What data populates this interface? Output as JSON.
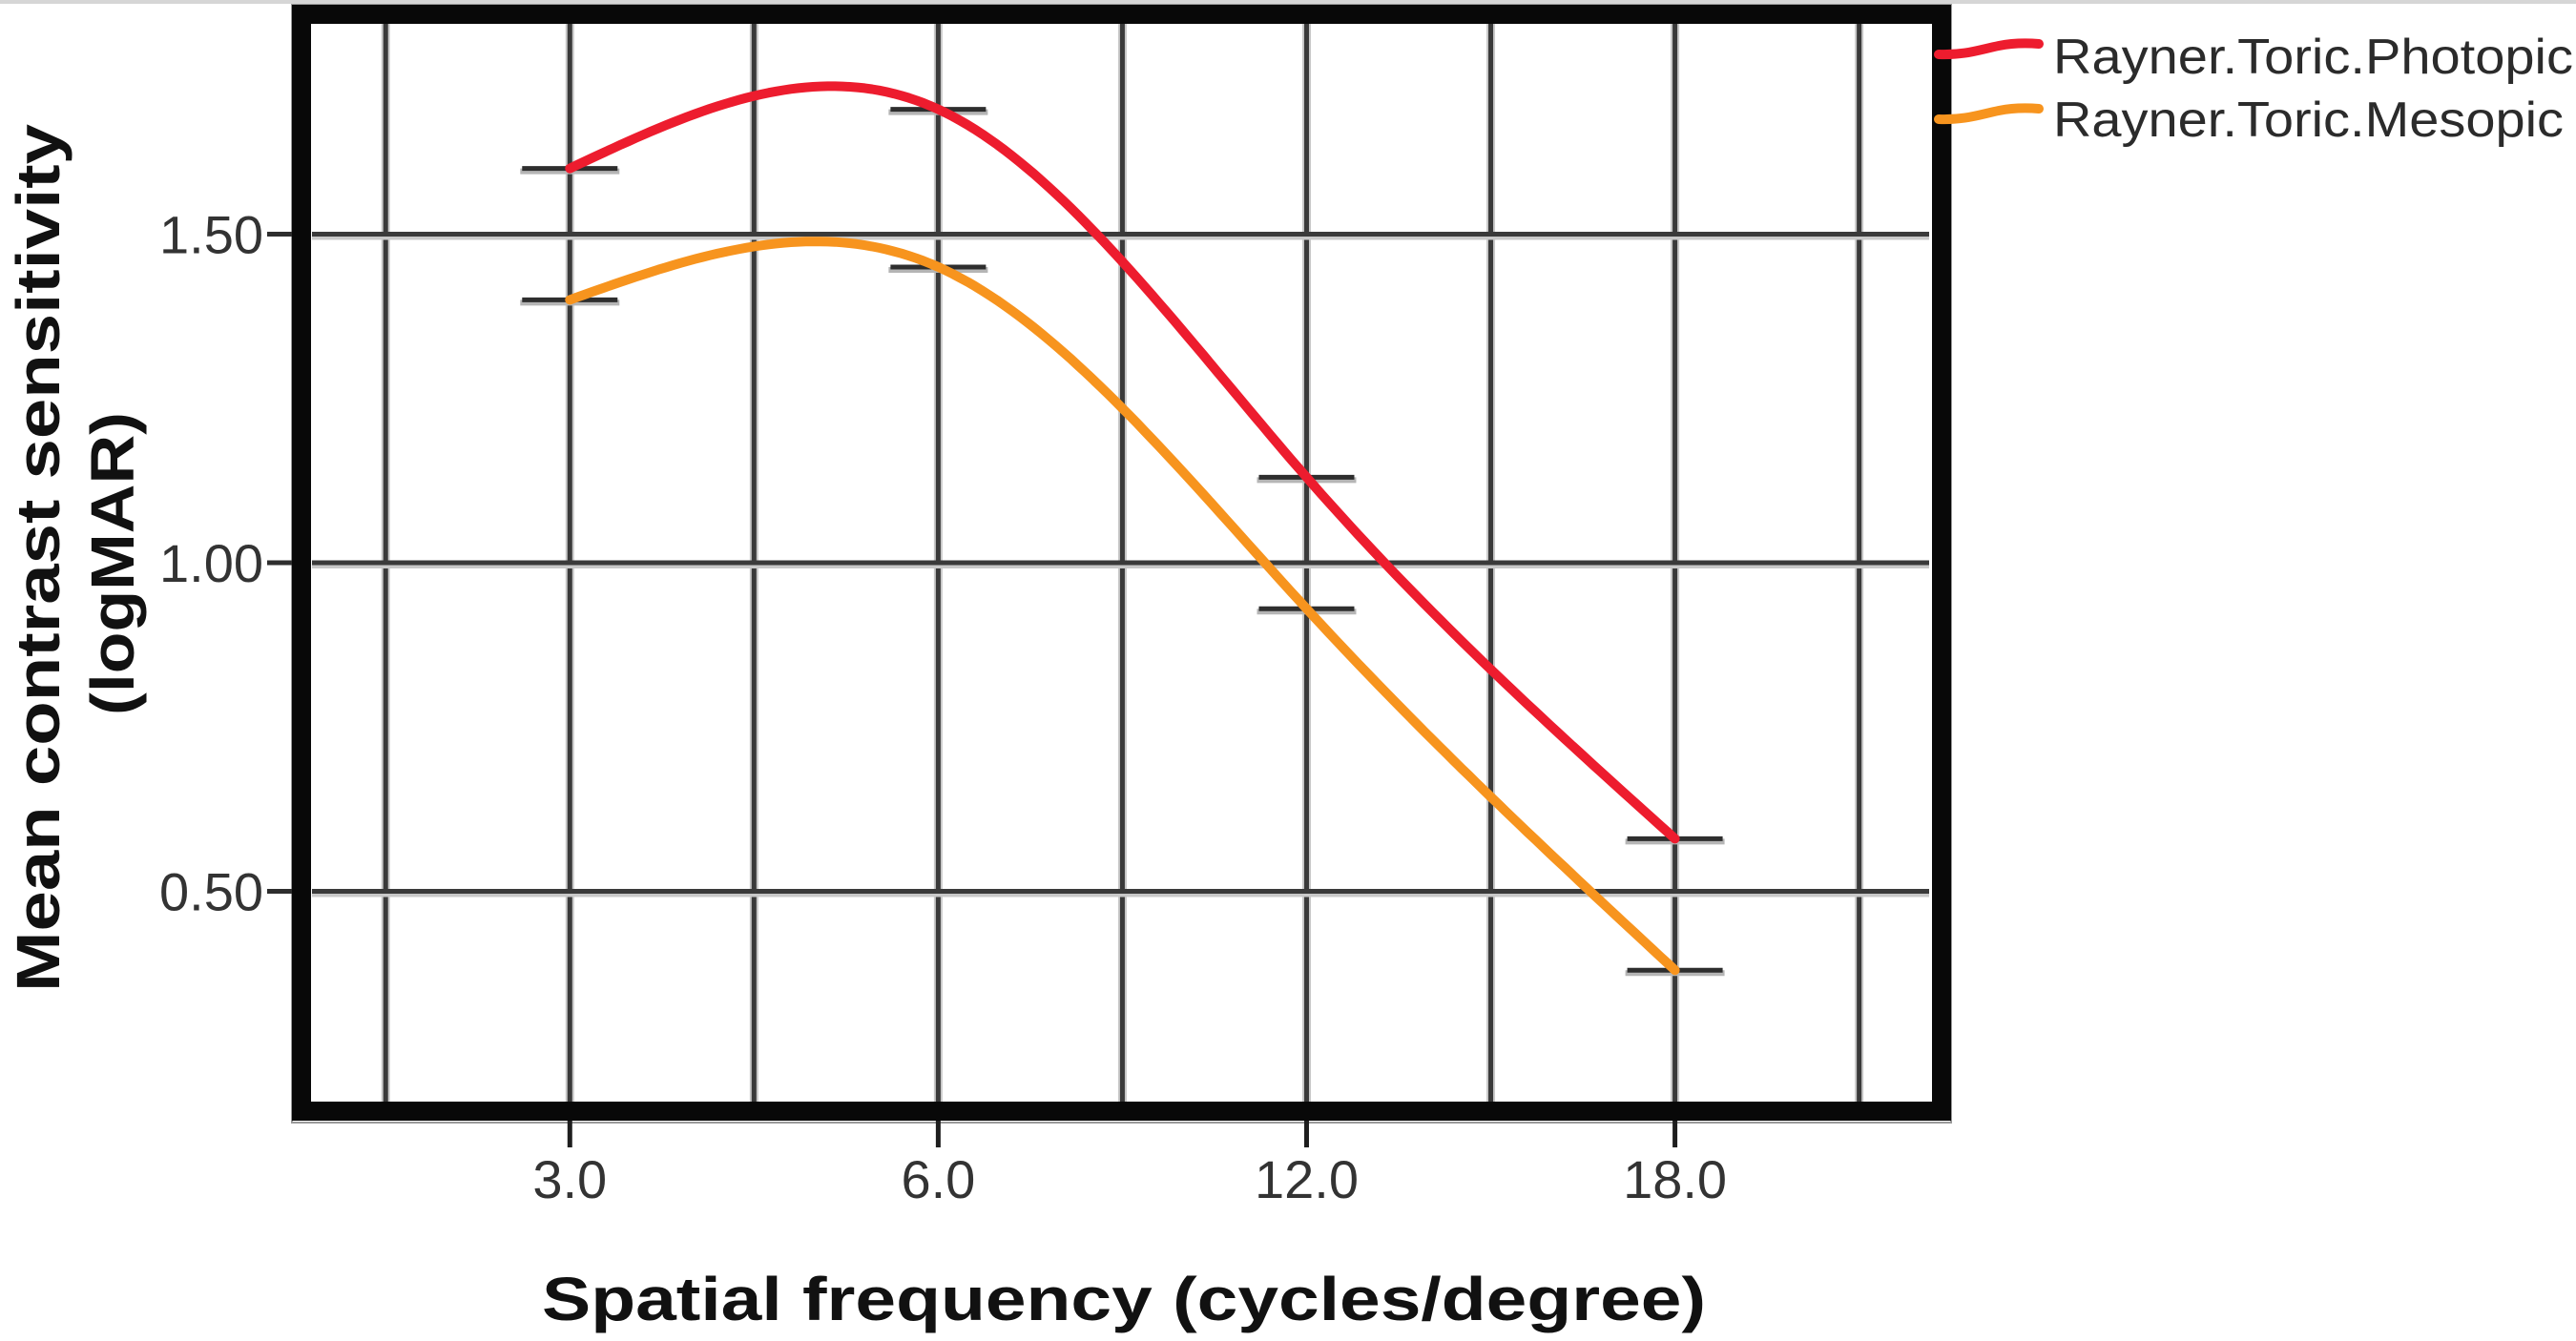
{
  "chart_data": {
    "type": "line",
    "title": "",
    "xlabel": "Spatial frequency (cycles/degree)",
    "ylabel_lines": [
      "Mean contrast sensitivity",
      "(logMAR)"
    ],
    "categories": [
      "3.0",
      "6.0",
      "12.0",
      "18.0"
    ],
    "x": [
      3.0,
      6.0,
      12.0,
      18.0
    ],
    "y_ticks": [
      0.5,
      1.0,
      1.5
    ],
    "y_tick_labels": [
      "0.50",
      "1.00",
      "1.50"
    ],
    "ylim": [
      0.18,
      1.82
    ],
    "x_index_range": [
      -0.7,
      3.69
    ],
    "grid": true,
    "smoothed": true,
    "error_bar_caps": true,
    "legend_position": "top-right (outside plot)",
    "series": [
      {
        "name": "Rayner.Toric.Photopic",
        "color": "#ed1c2e",
        "values": [
          1.6,
          1.69,
          1.13,
          0.58
        ]
      },
      {
        "name": "Rayner.Toric.Mesopic",
        "color": "#f7941e",
        "values": [
          1.4,
          1.45,
          0.93,
          0.38
        ]
      }
    ]
  }
}
